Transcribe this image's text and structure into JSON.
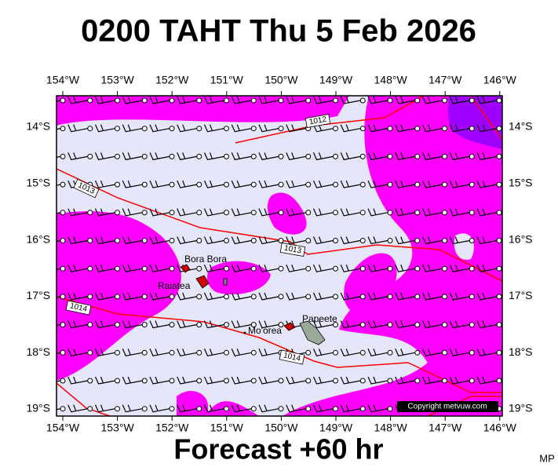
{
  "header": {
    "title": "0200 TAHT Thu 5 Feb 2026"
  },
  "axes": {
    "longitudes": [
      "154°W",
      "153°W",
      "152°W",
      "151°W",
      "150°W",
      "149°W",
      "148°W",
      "147°W",
      "146°W"
    ],
    "latitudes": [
      "14°S",
      "15°S",
      "16°S",
      "17°S",
      "18°S",
      "19°S"
    ]
  },
  "isobars": [
    {
      "label": "1012"
    },
    {
      "label": "1013"
    },
    {
      "label": "1013"
    },
    {
      "label": "1014"
    },
    {
      "label": "1014"
    }
  ],
  "places": [
    {
      "label": "Bora Bora"
    },
    {
      "label": "Raiatea"
    },
    {
      "label": "Mo'orea"
    },
    {
      "label": "Papeete"
    }
  ],
  "copyright": "Copyright metvuw.com",
  "footer": {
    "forecast": "Forecast +60 hr",
    "credit": "MP"
  }
}
